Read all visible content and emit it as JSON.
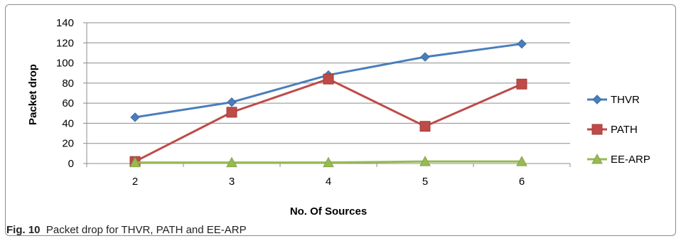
{
  "chart_data": {
    "type": "line",
    "x": [
      2,
      3,
      4,
      5,
      6
    ],
    "xlabel": "No. Of Sources",
    "ylabel": "Packet drop",
    "ylim": [
      0,
      140
    ],
    "yticks": [
      0,
      20,
      40,
      60,
      80,
      100,
      120,
      140
    ],
    "grid": "horizontal",
    "legend": "right",
    "series": [
      {
        "name": "THVR",
        "values": [
          46,
          61,
          88,
          106,
          119
        ],
        "color": "#4a7ebb",
        "marker": "diamond"
      },
      {
        "name": "PATH",
        "values": [
          2,
          51,
          84,
          37,
          79
        ],
        "color": "#be4b48",
        "marker": "square"
      },
      {
        "name": "EE-ARP",
        "values": [
          1,
          1,
          1,
          2,
          2
        ],
        "color": "#98b954",
        "marker": "triangle"
      }
    ]
  },
  "caption": {
    "label": "Fig. 10",
    "text": "Packet drop for THVR, PATH and EE-ARP"
  }
}
